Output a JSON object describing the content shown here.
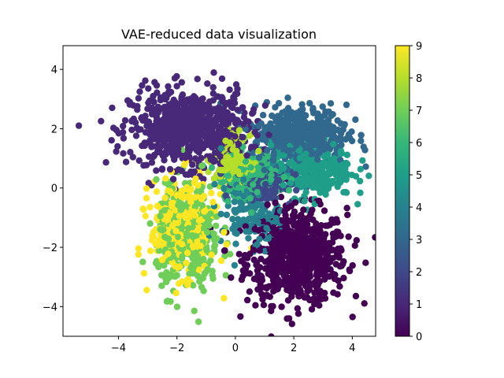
{
  "chart_data": {
    "type": "scatter",
    "title": "VAE-reduced data visualization",
    "xlabel": "",
    "ylabel": "",
    "xlim": [
      -5.9,
      4.8
    ],
    "ylim": [
      -5.0,
      4.8
    ],
    "xticks": [
      -4,
      -2,
      0,
      2,
      4
    ],
    "xtick_labels": [
      "−4",
      "−2",
      "0",
      "2",
      "4"
    ],
    "yticks": [
      -4,
      -2,
      0,
      2,
      4
    ],
    "ytick_labels": [
      "−4",
      "−2",
      "0",
      "2",
      "4"
    ],
    "grid": false,
    "colormap": "viridis",
    "colorbar": {
      "range": [
        0,
        9
      ],
      "ticks": [
        0,
        1,
        2,
        3,
        4,
        5,
        6,
        7,
        8,
        9
      ],
      "tick_labels": [
        "0",
        "1",
        "2",
        "3",
        "4",
        "5",
        "6",
        "7",
        "8",
        "9"
      ]
    },
    "viridis_stops": [
      "#440154",
      "#482878",
      "#3e4989",
      "#31688e",
      "#26828e",
      "#1f9e89",
      "#35b779",
      "#6ece58",
      "#b5de2b",
      "#fde725"
    ],
    "clusters": [
      {
        "label": 0,
        "center": [
          2.1,
          -2.3
        ],
        "spread": [
          0.85,
          0.8
        ],
        "count": 700
      },
      {
        "label": 1,
        "center": [
          -1.6,
          2.0
        ],
        "spread": [
          1.0,
          0.65
        ],
        "count": 700
      },
      {
        "label": 2,
        "center": [
          1.0,
          0.1
        ],
        "spread": [
          0.5,
          0.3
        ],
        "count": 120
      },
      {
        "label": 3,
        "center": [
          2.2,
          1.8
        ],
        "spread": [
          0.8,
          0.5
        ],
        "count": 450
      },
      {
        "label": 4,
        "center": [
          0.5,
          -0.8
        ],
        "spread": [
          0.5,
          0.6
        ],
        "count": 150
      },
      {
        "label": 5,
        "center": [
          2.6,
          0.6
        ],
        "spread": [
          0.7,
          0.45
        ],
        "count": 300
      },
      {
        "label": 6,
        "center": [
          0.5,
          0.4
        ],
        "spread": [
          0.55,
          0.4
        ],
        "count": 200
      },
      {
        "label": 7,
        "center": [
          -1.6,
          -1.7
        ],
        "spread": [
          0.55,
          0.9
        ],
        "count": 350
      },
      {
        "label": 8,
        "center": [
          -0.1,
          1.0
        ],
        "spread": [
          0.3,
          0.4
        ],
        "count": 150
      },
      {
        "label": 9,
        "center": [
          -1.8,
          -1.3
        ],
        "spread": [
          0.55,
          0.8
        ],
        "count": 350
      }
    ]
  }
}
